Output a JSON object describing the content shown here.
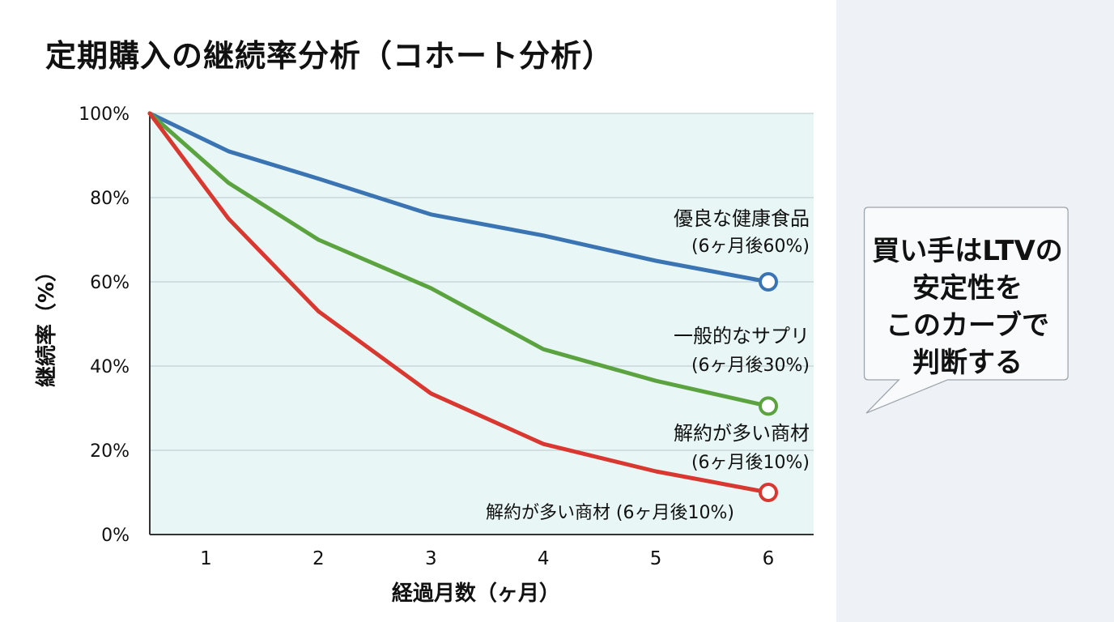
{
  "title": "定期購入の継続率分析（コホート分析）",
  "callout": {
    "lines": [
      "買い手はLTVの",
      "安定性を",
      "このカーブで",
      "判断する"
    ]
  },
  "colors": {
    "blue": "#3b74b3",
    "green": "#5aa33f",
    "red": "#d8382f",
    "plot_bg": "#e8f6f6",
    "grid": "#b9c9c9"
  },
  "chart_data": {
    "type": "line",
    "title": "定期購入の継続率分析（コホート分析）",
    "xlabel": "経過月数（ヶ月）",
    "ylabel": "継続率（%）",
    "x_ticks": [
      "1",
      "2",
      "3",
      "4",
      "5",
      "6"
    ],
    "y_ticks": [
      "0%",
      "20%",
      "40%",
      "60%",
      "80%",
      "100%"
    ],
    "xlim": [
      0.5,
      6.4
    ],
    "ylim": [
      0,
      100
    ],
    "grid": true,
    "series": [
      {
        "name": "優良な健康食品",
        "color": "#3b74b3",
        "x": [
          0.5,
          1.2,
          2,
          3,
          4,
          5,
          6
        ],
        "y": [
          100,
          91,
          84.5,
          76,
          71,
          65,
          60
        ],
        "label_lines": [
          "優良な健康食品",
          "(6ヶ月後60%)"
        ]
      },
      {
        "name": "一般的なサプリ",
        "color": "#5aa33f",
        "x": [
          0.5,
          1.2,
          2,
          3,
          4,
          5,
          6
        ],
        "y": [
          100,
          83.5,
          70,
          58.5,
          44,
          36.5,
          30.5
        ],
        "label_lines": [
          "一般的なサプリ",
          "(6ヶ月後30%)"
        ]
      },
      {
        "name": "解約が多い商材",
        "color": "#d8382f",
        "x": [
          0.5,
          1.2,
          2,
          3,
          4,
          5,
          6
        ],
        "y": [
          100,
          75,
          53,
          33.5,
          21.5,
          15,
          10
        ],
        "label_lines": [
          "解約が多い商材",
          "(6ヶ月後10%)"
        ]
      }
    ],
    "annotations": [
      "解約が多い商材 (6ヶ月後10%)"
    ]
  }
}
